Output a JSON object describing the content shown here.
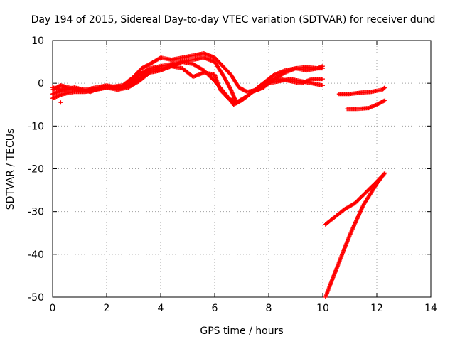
{
  "chart_data": {
    "type": "scatter",
    "title": "Day 194 of 2015, Sidereal Day-to-day VTEC variation (SDTVAR) for receiver dund",
    "xlabel": "GPS time / hours",
    "ylabel": "SDTVAR / TECUs",
    "xlim": [
      0,
      14
    ],
    "ylim": [
      -50,
      10
    ],
    "xticks": [
      0,
      2,
      4,
      6,
      8,
      10,
      12,
      14
    ],
    "yticks": [
      10,
      0,
      -10,
      -20,
      -30,
      -40,
      -50
    ],
    "grid": true,
    "legend": "none",
    "marker": "+",
    "color": "#ff0000",
    "series": [
      {
        "x": [
          0,
          0.3,
          0.6,
          1.0,
          1.4,
          1.8,
          2.2,
          2.6,
          3.0,
          3.3,
          3.6,
          4.0,
          4.4,
          4.8,
          5.2,
          5.6,
          6.0,
          6.3,
          6.6,
          6.9,
          7.2,
          7.6,
          8.0,
          8.4,
          8.8,
          9.2,
          9.6,
          10.0
        ],
        "y": [
          -1.5,
          -0.5,
          -1.0,
          -1.5,
          -2.0,
          -1.0,
          -0.8,
          -0.5,
          1.5,
          3.5,
          4.5,
          6.0,
          5.5,
          6.0,
          6.5,
          7.0,
          6.0,
          4.0,
          2.0,
          -1.0,
          -2.0,
          -1.5,
          0.0,
          0.5,
          1.0,
          0.5,
          0.0,
          -0.5
        ]
      },
      {
        "x": [
          0,
          0.4,
          0.8,
          1.2,
          1.6,
          2.0,
          2.4,
          2.8,
          3.2,
          3.6,
          4.0,
          4.4,
          4.8,
          5.2,
          5.6,
          6.0,
          6.3,
          6.6,
          6.8,
          7.1,
          7.4,
          7.8,
          8.2,
          8.6,
          9.0,
          9.4,
          9.8,
          10.0
        ],
        "y": [
          -2.5,
          -1.5,
          -1.0,
          -1.5,
          -1.0,
          -0.5,
          -1.0,
          -0.5,
          2.0,
          3.5,
          4.0,
          4.5,
          5.0,
          5.5,
          6.0,
          5.0,
          2.0,
          -1.5,
          -4.5,
          -3.5,
          -2.0,
          -1.0,
          1.0,
          2.5,
          3.5,
          3.8,
          3.5,
          4.0
        ]
      },
      {
        "x": [
          0,
          0.4,
          0.8,
          1.2,
          1.6,
          2.0,
          2.4,
          2.8,
          3.2,
          3.6,
          4.0,
          4.4,
          4.8,
          5.2,
          5.6,
          6.0,
          6.4,
          6.7,
          7.0,
          7.4,
          7.8,
          8.2,
          8.6,
          9.0,
          9.4,
          9.8,
          10.0
        ],
        "y": [
          -3.5,
          -2.5,
          -2.0,
          -2.0,
          -1.5,
          -1.0,
          -1.0,
          -0.5,
          1.0,
          3.0,
          3.5,
          4.0,
          5.0,
          4.5,
          3.0,
          0.5,
          -2.5,
          -5.0,
          -4.0,
          -2.0,
          0.0,
          2.0,
          3.0,
          3.5,
          3.0,
          3.5,
          3.5
        ]
      },
      {
        "x": [
          0,
          0.4,
          0.8,
          1.2,
          1.6,
          2.0,
          2.4,
          2.8,
          3.2,
          3.6,
          4.0,
          4.4,
          4.8,
          5.2,
          5.6,
          6.0,
          6.2,
          6.5,
          6.8,
          7.2,
          7.6,
          8.0,
          8.4,
          8.8,
          9.2,
          9.6,
          10.0
        ],
        "y": [
          -1.0,
          -1.5,
          -1.5,
          -2.0,
          -1.5,
          -1.0,
          -1.5,
          -1.0,
          0.5,
          2.5,
          3.0,
          4.0,
          3.5,
          1.5,
          2.5,
          2.0,
          -1.5,
          -3.5,
          -4.5,
          -3.0,
          -1.0,
          0.5,
          1.0,
          0.5,
          0.0,
          1.0,
          1.0
        ]
      },
      {
        "x": [
          0.3
        ],
        "y": [
          -4.5
        ]
      },
      {
        "x": [
          10.6,
          11.0,
          11.4,
          11.8,
          12.2,
          12.3
        ],
        "y": [
          -2.5,
          -2.5,
          -2.2,
          -2.0,
          -1.5,
          -1.0
        ]
      },
      {
        "x": [
          10.9,
          11.3,
          11.7,
          12.0,
          12.3
        ],
        "y": [
          -6.0,
          -6.0,
          -5.8,
          -5.0,
          -4.0
        ]
      },
      {
        "x": [
          10.1,
          10.4,
          10.8,
          11.2,
          11.6,
          12.0,
          12.3
        ],
        "y": [
          -33.0,
          -31.5,
          -29.5,
          -28.0,
          -25.5,
          -23.0,
          -21.0
        ]
      },
      {
        "x": [
          10.1,
          10.5,
          11.0,
          11.5,
          12.0,
          12.3
        ],
        "y": [
          -50.0,
          -43.5,
          -35.5,
          -28.5,
          -23.5,
          -21.0
        ]
      }
    ]
  }
}
